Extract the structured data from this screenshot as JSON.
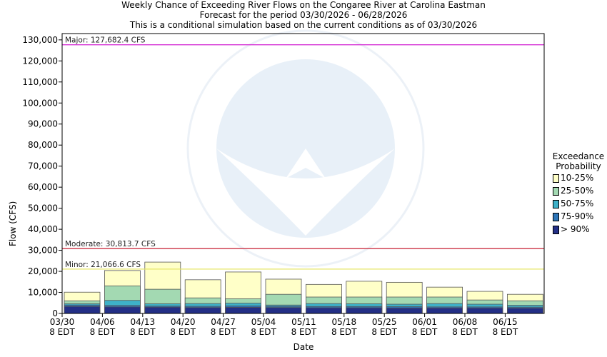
{
  "titles": {
    "line1": "Weekly Chance of Exceeding River Flows on the Congaree River at Carolina Eastman",
    "line2": "Forecast for the period 03/30/2026 - 06/28/2026",
    "line3": "This is a conditional simulation based on the current conditions as of 03/30/2026"
  },
  "axis": {
    "ylabel": "Flow (CFS)",
    "xlabel": "Date"
  },
  "legend": {
    "title_line1": "Exceedance",
    "title_line2": "Probability",
    "items": [
      {
        "label": "10-25%",
        "color": "#ffffc8"
      },
      {
        "label": "25-50%",
        "color": "#a3d9b2"
      },
      {
        "label": "50-75%",
        "color": "#3eb1c8"
      },
      {
        "label": "75-90%",
        "color": "#2c75b8"
      },
      {
        "label": "> 90%",
        "color": "#232f86"
      }
    ]
  },
  "chart_data": {
    "type": "bar",
    "stacked": true,
    "categories": [
      "03/30\n8 EDT",
      "04/06\n8 EDT",
      "04/13\n8 EDT",
      "04/20\n8 EDT",
      "04/27\n8 EDT",
      "05/04\n8 EDT",
      "05/11\n8 EDT",
      "05/18\n8 EDT",
      "05/25\n8 EDT",
      "06/01\n8 EDT",
      "06/08\n8 EDT",
      "06/15\n8 EDT"
    ],
    "bins": [
      {
        "label": "> 90%",
        "color": "#232f86",
        "top": [
          3300,
          3100,
          3000,
          2800,
          2900,
          2800,
          2700,
          2700,
          2600,
          2600,
          2600,
          2500
        ]
      },
      {
        "label": "75-90%",
        "color": "#2c75b8",
        "top": [
          4000,
          3800,
          3500,
          3400,
          3600,
          3400,
          3300,
          3300,
          3200,
          3100,
          3100,
          3000
        ]
      },
      {
        "label": "50-75%",
        "color": "#3eb1c8",
        "top": [
          4600,
          6200,
          4600,
          4700,
          4900,
          4000,
          4700,
          4600,
          4400,
          4700,
          4400,
          3900
        ]
      },
      {
        "label": "25-50%",
        "color": "#a3d9b2",
        "top": [
          6000,
          13100,
          11500,
          7400,
          7000,
          9100,
          7800,
          7800,
          7800,
          7800,
          6400,
          6000
        ]
      },
      {
        "label": "10-25%",
        "color": "#ffffc8",
        "top": [
          10100,
          20400,
          24400,
          16000,
          19700,
          16300,
          13800,
          15300,
          14800,
          12500,
          10500,
          9100
        ]
      }
    ],
    "thresholds": [
      {
        "name": "Major",
        "label": "Major: 127,682.4 CFS",
        "value": 127682.4,
        "color": "#d633d6"
      },
      {
        "name": "Moderate",
        "label": "Moderate: 30,813.7 CFS",
        "value": 30813.7,
        "color": "#cc3344"
      },
      {
        "name": "Minor",
        "label": "Minor: 21,066.6 CFS",
        "value": 21066.6,
        "color": "#e5e566"
      }
    ],
    "yticks": [
      "0",
      "10,000",
      "20,000",
      "30,000",
      "40,000",
      "50,000",
      "60,000",
      "70,000",
      "80,000",
      "90,000",
      "100,000",
      "110,000",
      "120,000",
      "130,000"
    ],
    "ylim": [
      0,
      133000
    ],
    "xlabel": "Date",
    "ylabel": "Flow (CFS)",
    "grid": false,
    "legend_position": "right"
  }
}
